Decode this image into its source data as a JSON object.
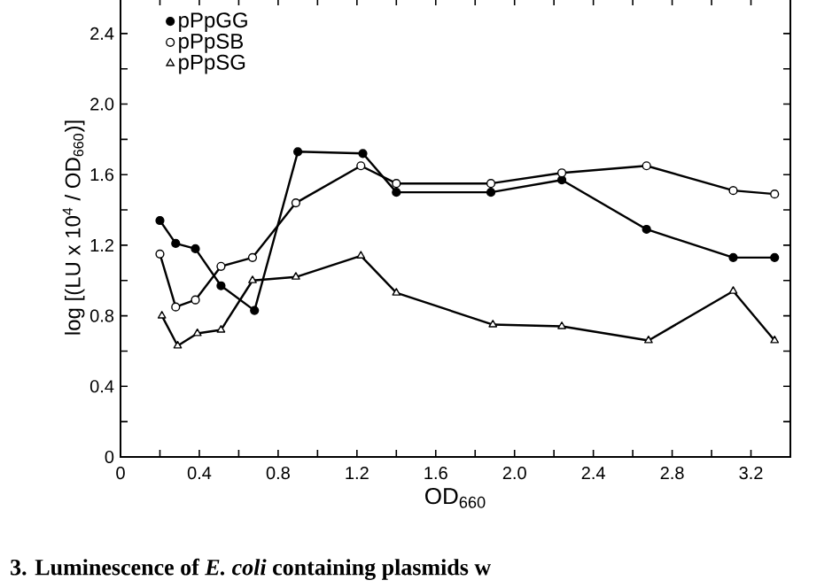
{
  "chart_data": {
    "type": "line",
    "xlabel": "OD$_{660}$",
    "ylabel": "log [(LU x 10$^{4}$ / OD$_{660}$)]",
    "xlim": [
      0,
      3.4
    ],
    "ylim": [
      0,
      2.6
    ],
    "xticks": [
      0,
      {
        "value": 0.2,
        "label": null
      },
      0.4,
      {
        "value": 0.6,
        "label": null
      },
      0.8,
      {
        "value": 1.0,
        "label": null
      },
      1.2,
      {
        "value": 1.4,
        "label": null
      },
      1.6,
      {
        "value": 1.8,
        "label": null
      },
      {
        "value": 2.0,
        "label": "2.0"
      },
      {
        "value": 2.2,
        "label": null
      },
      2.4,
      {
        "value": 2.6,
        "label": null
      },
      2.8,
      {
        "value": 3.0,
        "label": null
      },
      3.2
    ],
    "yticks": [
      0,
      {
        "value": 0.2,
        "label": null
      },
      0.4,
      {
        "value": 0.6,
        "label": null
      },
      0.8,
      {
        "value": 1.0,
        "label": null
      },
      1.2,
      {
        "value": 1.4,
        "label": null
      },
      1.6,
      {
        "value": 1.8,
        "label": null
      },
      {
        "value": 2.0,
        "label": "2.0"
      },
      {
        "value": 2.2,
        "label": null
      },
      2.4
    ],
    "legend": "top left",
    "line_style": "solid",
    "series": [
      {
        "name": "pPpGG",
        "color": "#000000",
        "marker": "circle",
        "x": [
          0.2,
          0.28,
          0.38,
          0.51,
          0.68,
          0.9,
          1.23,
          1.4,
          1.88,
          2.24,
          2.67,
          3.11,
          3.32
        ],
        "values": [
          1.34,
          1.21,
          1.18,
          0.97,
          0.83,
          1.73,
          1.72,
          1.5,
          1.5,
          1.57,
          1.29,
          1.13,
          1.13
        ]
      },
      {
        "name": "pPpSB",
        "color": "#000000",
        "marker": "circle",
        "x": [
          0.2,
          0.28,
          0.38,
          0.51,
          0.67,
          0.89,
          1.22,
          1.4,
          1.88,
          2.24,
          2.67,
          3.11,
          3.32
        ],
        "values": [
          1.15,
          0.85,
          0.89,
          1.08,
          1.13,
          1.44,
          1.65,
          1.55,
          1.55,
          1.61,
          1.65,
          1.51,
          1.49
        ]
      },
      {
        "name": "pPpSG",
        "color": "#000000",
        "marker": "triangle",
        "x": [
          0.21,
          0.29,
          0.39,
          0.51,
          0.67,
          0.89,
          1.22,
          1.4,
          1.89,
          2.24,
          2.68,
          3.11,
          3.32
        ],
        "values": [
          0.8,
          0.63,
          0.7,
          0.72,
          1.0,
          1.02,
          1.14,
          0.93,
          0.75,
          0.74,
          0.66,
          0.94,
          0.66
        ]
      }
    ],
    "annotations": [
      "3. Luminescence of *E. coli* containing plasmids w"
    ]
  }
}
